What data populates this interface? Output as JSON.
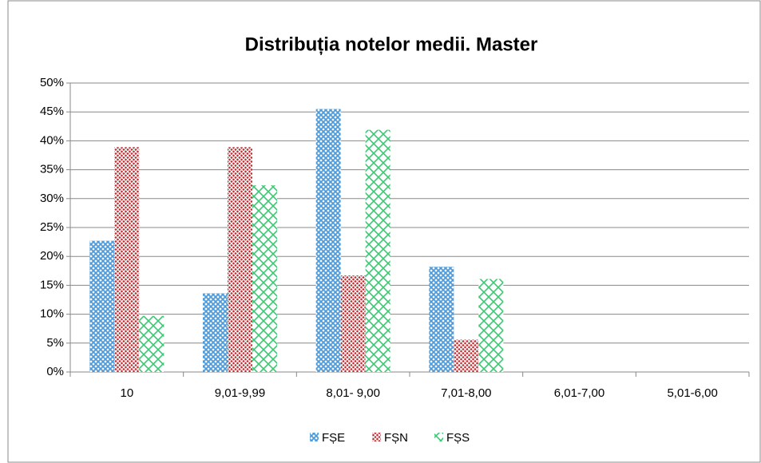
{
  "chart_data": {
    "type": "bar",
    "title": "Distribuția notelor medii. Master",
    "categories": [
      "10",
      "9,01-9,99",
      "8,01- 9,00",
      "7,01-8,00",
      "6,01-7,00",
      "5,01-6,00"
    ],
    "series": [
      {
        "name": "FȘE",
        "color": "#4f9bd9",
        "values": [
          22.7,
          13.6,
          45.5,
          18.2,
          0,
          0
        ]
      },
      {
        "name": "FȘN",
        "color": "#c0282d",
        "values": [
          38.9,
          38.9,
          16.7,
          5.6,
          0,
          0
        ]
      },
      {
        "name": "FȘS",
        "color": "#3cc873",
        "values": [
          9.7,
          32.3,
          41.9,
          16.1,
          0,
          0
        ]
      }
    ],
    "ylim": [
      0,
      50
    ],
    "yticks": [
      {
        "value": 0,
        "label": "0%"
      },
      {
        "value": 5,
        "label": "5%"
      },
      {
        "value": 10,
        "label": "10%"
      },
      {
        "value": 15,
        "label": "15%"
      },
      {
        "value": 20,
        "label": "20%"
      },
      {
        "value": 25,
        "label": "25%"
      },
      {
        "value": 30,
        "label": "30%"
      },
      {
        "value": 35,
        "label": "35%"
      },
      {
        "value": 40,
        "label": "40%"
      },
      {
        "value": 45,
        "label": "45%"
      },
      {
        "value": 50,
        "label": "50%"
      }
    ],
    "grid": true,
    "legend": "bottom"
  }
}
